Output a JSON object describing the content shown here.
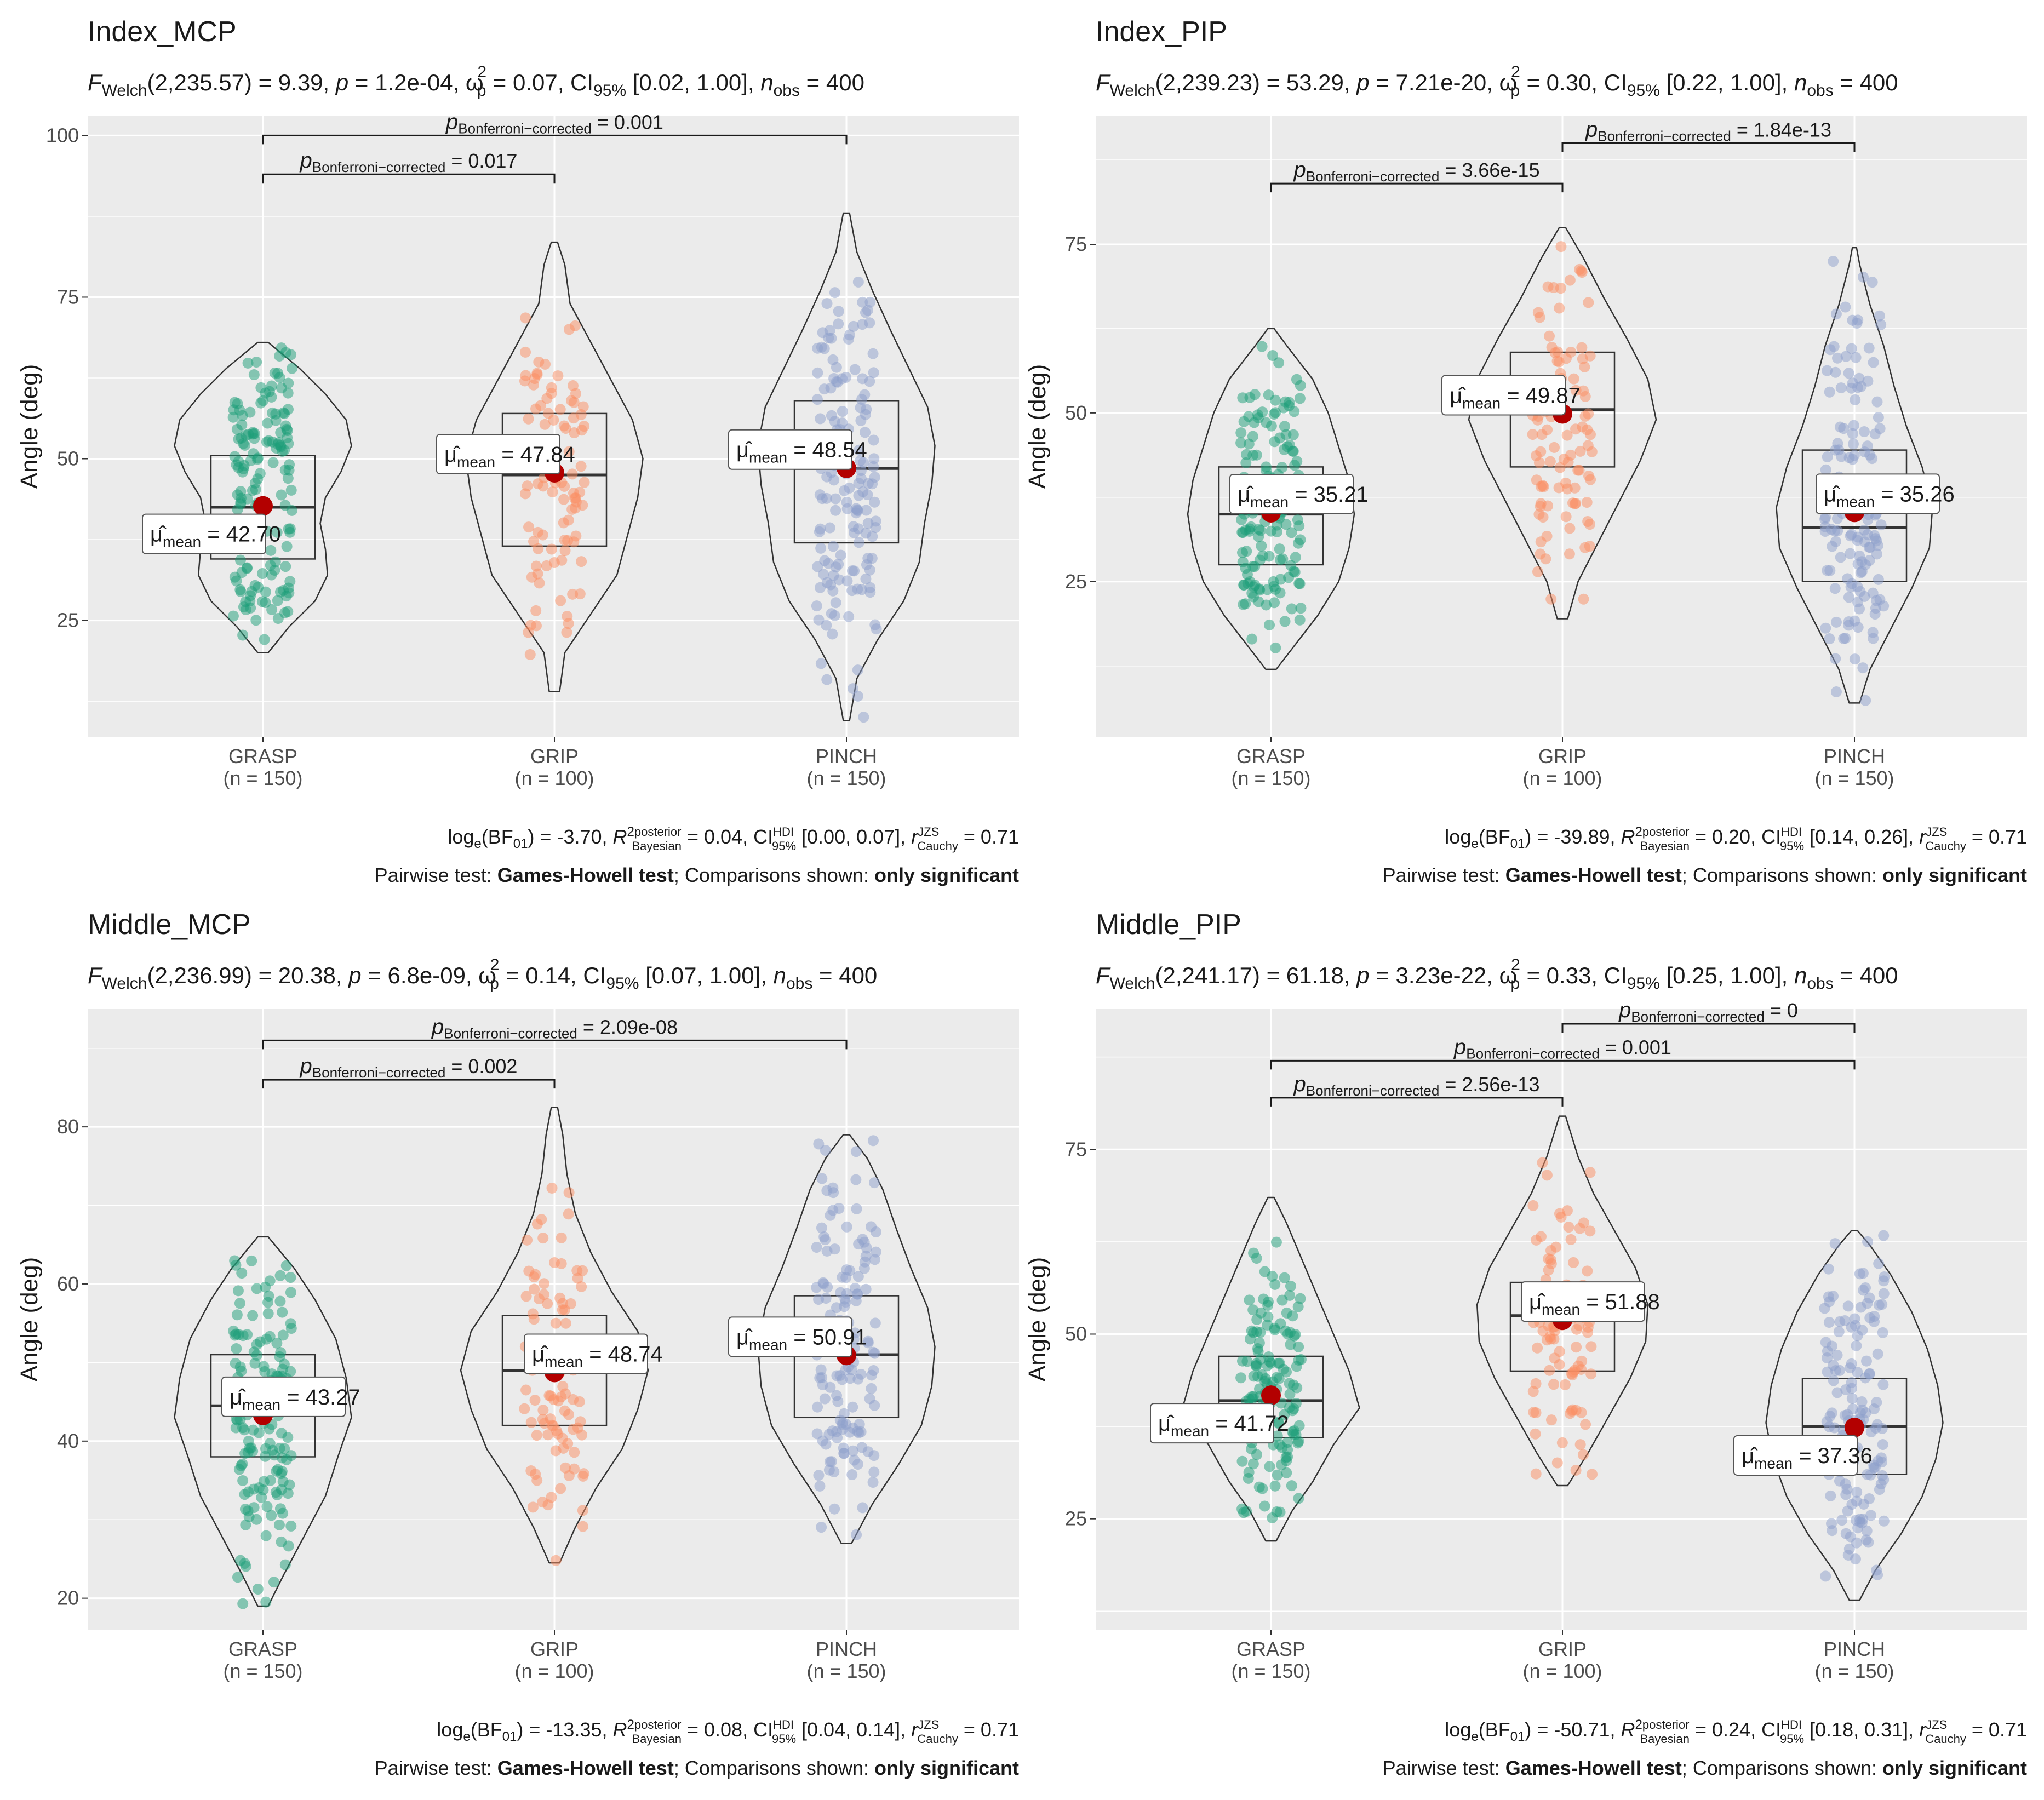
{
  "figure": {
    "pairwise_prefix": "Pairwise test: ",
    "pairwise_test": "Games-Howell test",
    "comparisons_prefix": "; Comparisons shown: ",
    "comparisons_shown": "only significant",
    "colors": {
      "GRASP": "#1b9e77",
      "GRIP": "#fc8d62",
      "PINCH": "#8da0cb",
      "mean": "#b30000",
      "panel_bg": "#ebebeb",
      "grid": "#ffffff"
    }
  },
  "chart_data": [
    {
      "type": "violin-box-scatter",
      "title": "Index_MCP",
      "subtitle": {
        "df": "2,235.57",
        "F": "9.39",
        "p": "1.2e-04",
        "omega2": "0.07",
        "ci": "[0.02, 1.00]",
        "nobs": "400"
      },
      "ylabel": "Angle (deg)",
      "ylim": [
        7,
        103
      ],
      "yticks": [
        25,
        50,
        75,
        100
      ],
      "groups": [
        {
          "name": "GRASP",
          "n_label": "(n = 150)",
          "mean": 42.7,
          "mean_label": "42.70",
          "q1": 34.5,
          "median": 42.5,
          "q3": 50.5,
          "min": 20,
          "max": 68,
          "violin": [
            [
              20,
              0.05
            ],
            [
              24,
              0.25
            ],
            [
              28,
              0.5
            ],
            [
              32,
              0.62
            ],
            [
              36,
              0.6
            ],
            [
              40,
              0.55
            ],
            [
              44,
              0.6
            ],
            [
              48,
              0.75
            ],
            [
              52,
              0.85
            ],
            [
              56,
              0.8
            ],
            [
              60,
              0.6
            ],
            [
              64,
              0.35
            ],
            [
              68,
              0.05
            ]
          ]
        },
        {
          "name": "GRIP",
          "n_label": "(n = 100)",
          "mean": 47.84,
          "mean_label": "47.84",
          "q1": 36.5,
          "median": 47.5,
          "q3": 57,
          "min": 14,
          "max": 83.5,
          "violin": [
            [
              14,
              0.05
            ],
            [
              20,
              0.1
            ],
            [
              26,
              0.35
            ],
            [
              32,
              0.6
            ],
            [
              38,
              0.7
            ],
            [
              44,
              0.8
            ],
            [
              50,
              0.85
            ],
            [
              56,
              0.75
            ],
            [
              62,
              0.55
            ],
            [
              68,
              0.35
            ],
            [
              74,
              0.15
            ],
            [
              80,
              0.1
            ],
            [
              83.5,
              0.03
            ]
          ]
        },
        {
          "name": "PINCH",
          "n_label": "(n = 150)",
          "mean": 48.54,
          "mean_label": "48.54",
          "q1": 37,
          "median": 48.5,
          "q3": 59,
          "min": 9.5,
          "max": 88,
          "violin": [
            [
              9.5,
              0.03
            ],
            [
              16,
              0.1
            ],
            [
              22,
              0.3
            ],
            [
              28,
              0.55
            ],
            [
              34,
              0.7
            ],
            [
              40,
              0.75
            ],
            [
              46,
              0.82
            ],
            [
              52,
              0.85
            ],
            [
              58,
              0.78
            ],
            [
              64,
              0.6
            ],
            [
              70,
              0.42
            ],
            [
              76,
              0.25
            ],
            [
              82,
              0.1
            ],
            [
              88,
              0.03
            ]
          ]
        }
      ],
      "comparisons": [
        {
          "from": "GRASP",
          "to": "GRIP",
          "p": "0.017",
          "y": 94
        },
        {
          "from": "GRASP",
          "to": "PINCH",
          "p": "0.001",
          "y": 100
        }
      ],
      "bayes": {
        "bf": "-3.70",
        "r2": "0.04",
        "ci": "[0.00, 0.07]",
        "r": "0.71"
      }
    },
    {
      "type": "violin-box-scatter",
      "title": "Index_PIP",
      "subtitle": {
        "df": "2,239.23",
        "F": "53.29",
        "p": "7.21e-20",
        "omega2": "0.30",
        "ci": "[0.22, 1.00]",
        "nobs": "400"
      },
      "ylabel": "Angle (deg)",
      "ylim": [
        2,
        94
      ],
      "yticks": [
        25,
        50,
        75
      ],
      "groups": [
        {
          "name": "GRASP",
          "n_label": "(n = 150)",
          "mean": 35.21,
          "mean_label": "35.21",
          "q1": 27.5,
          "median": 35,
          "q3": 42,
          "min": 12,
          "max": 62.5,
          "violin": [
            [
              12,
              0.05
            ],
            [
              16,
              0.25
            ],
            [
              20,
              0.45
            ],
            [
              25,
              0.65
            ],
            [
              30,
              0.75
            ],
            [
              35,
              0.8
            ],
            [
              40,
              0.75
            ],
            [
              45,
              0.65
            ],
            [
              50,
              0.55
            ],
            [
              55,
              0.4
            ],
            [
              60,
              0.15
            ],
            [
              62.5,
              0.03
            ]
          ]
        },
        {
          "name": "GRIP",
          "n_label": "(n = 100)",
          "mean": 49.87,
          "mean_label": "49.87",
          "q1": 42,
          "median": 50.5,
          "q3": 59,
          "min": 19.5,
          "max": 77.5,
          "violin": [
            [
              19.5,
              0.05
            ],
            [
              25,
              0.15
            ],
            [
              31,
              0.35
            ],
            [
              37,
              0.55
            ],
            [
              43,
              0.75
            ],
            [
              49,
              0.9
            ],
            [
              55,
              0.82
            ],
            [
              61,
              0.62
            ],
            [
              67,
              0.4
            ],
            [
              73,
              0.2
            ],
            [
              77.5,
              0.03
            ]
          ]
        },
        {
          "name": "PINCH",
          "n_label": "(n = 150)",
          "mean": 35.26,
          "mean_label": "35.26",
          "q1": 25,
          "median": 33,
          "q3": 44.5,
          "min": 7,
          "max": 74.5,
          "violin": [
            [
              7,
              0.05
            ],
            [
              12,
              0.15
            ],
            [
              18,
              0.35
            ],
            [
              24,
              0.55
            ],
            [
              30,
              0.72
            ],
            [
              36,
              0.75
            ],
            [
              42,
              0.65
            ],
            [
              48,
              0.5
            ],
            [
              54,
              0.38
            ],
            [
              60,
              0.28
            ],
            [
              66,
              0.15
            ],
            [
              72,
              0.05
            ],
            [
              74.5,
              0.02
            ]
          ]
        }
      ],
      "comparisons": [
        {
          "from": "GRASP",
          "to": "GRIP",
          "p": "3.66e-15",
          "y": 84
        },
        {
          "from": "GRIP",
          "to": "PINCH",
          "p": "1.84e-13",
          "y": 90
        }
      ],
      "bayes": {
        "bf": "-39.89",
        "r2": "0.20",
        "ci": "[0.14, 0.26]",
        "r": "0.71"
      }
    },
    {
      "type": "violin-box-scatter",
      "title": "Middle_MCP",
      "subtitle": {
        "df": "2,236.99",
        "F": "20.38",
        "p": "6.8e-09",
        "omega2": "0.14",
        "ci": "[0.07, 1.00]",
        "nobs": "400"
      },
      "ylabel": "Angle (deg)",
      "ylim": [
        16,
        95
      ],
      "yticks": [
        20,
        40,
        60,
        80
      ],
      "groups": [
        {
          "name": "GRASP",
          "n_label": "(n = 150)",
          "mean": 43.27,
          "mean_label": "43.27",
          "q1": 38,
          "median": 44.5,
          "q3": 51,
          "min": 19,
          "max": 66,
          "violin": [
            [
              19,
              0.05
            ],
            [
              23,
              0.2
            ],
            [
              28,
              0.4
            ],
            [
              33,
              0.6
            ],
            [
              38,
              0.72
            ],
            [
              43,
              0.85
            ],
            [
              48,
              0.8
            ],
            [
              53,
              0.7
            ],
            [
              58,
              0.5
            ],
            [
              62,
              0.3
            ],
            [
              66,
              0.05
            ]
          ]
        },
        {
          "name": "GRIP",
          "n_label": "(n = 100)",
          "mean": 48.74,
          "mean_label": "48.74",
          "q1": 42,
          "median": 49,
          "q3": 56,
          "min": 24.5,
          "max": 82.5,
          "violin": [
            [
              24.5,
              0.05
            ],
            [
              29,
              0.2
            ],
            [
              34,
              0.4
            ],
            [
              39,
              0.65
            ],
            [
              44,
              0.8
            ],
            [
              49,
              0.9
            ],
            [
              54,
              0.8
            ],
            [
              59,
              0.55
            ],
            [
              64,
              0.35
            ],
            [
              69,
              0.2
            ],
            [
              74,
              0.12
            ],
            [
              79,
              0.08
            ],
            [
              82.5,
              0.03
            ]
          ]
        },
        {
          "name": "PINCH",
          "n_label": "(n = 150)",
          "mean": 50.91,
          "mean_label": "50.91",
          "q1": 43,
          "median": 51,
          "q3": 58.5,
          "min": 27,
          "max": 79,
          "violin": [
            [
              27,
              0.05
            ],
            [
              32,
              0.25
            ],
            [
              37,
              0.5
            ],
            [
              42,
              0.72
            ],
            [
              47,
              0.82
            ],
            [
              52,
              0.85
            ],
            [
              57,
              0.78
            ],
            [
              62,
              0.62
            ],
            [
              67,
              0.48
            ],
            [
              72,
              0.35
            ],
            [
              76,
              0.2
            ],
            [
              79,
              0.03
            ]
          ]
        }
      ],
      "comparisons": [
        {
          "from": "GRASP",
          "to": "GRIP",
          "p": "0.002",
          "y": 86
        },
        {
          "from": "GRASP",
          "to": "PINCH",
          "p": "2.09e-08",
          "y": 91
        }
      ],
      "bayes": {
        "bf": "-13.35",
        "r2": "0.08",
        "ci": "[0.04, 0.14]",
        "r": "0.71"
      }
    },
    {
      "type": "violin-box-scatter",
      "title": "Middle_PIP",
      "subtitle": {
        "df": "2,241.17",
        "F": "61.18",
        "p": "3.23e-22",
        "omega2": "0.33",
        "ci": "[0.25, 1.00]",
        "nobs": "400"
      },
      "ylabel": "Angle (deg)",
      "ylim": [
        10,
        94
      ],
      "yticks": [
        25,
        50,
        75
      ],
      "groups": [
        {
          "name": "GRASP",
          "n_label": "(n = 150)",
          "mean": 41.72,
          "mean_label": "41.72",
          "q1": 36,
          "median": 41,
          "q3": 47,
          "min": 22,
          "max": 68.5,
          "violin": [
            [
              22,
              0.05
            ],
            [
              26,
              0.2
            ],
            [
              30,
              0.4
            ],
            [
              35,
              0.6
            ],
            [
              40,
              0.85
            ],
            [
              45,
              0.75
            ],
            [
              50,
              0.6
            ],
            [
              55,
              0.45
            ],
            [
              60,
              0.3
            ],
            [
              65,
              0.15
            ],
            [
              68.5,
              0.03
            ]
          ]
        },
        {
          "name": "GRIP",
          "n_label": "(n = 100)",
          "mean": 51.88,
          "mean_label": "51.88",
          "q1": 45,
          "median": 52.5,
          "q3": 57,
          "min": 29.5,
          "max": 79.5,
          "violin": [
            [
              29.5,
              0.05
            ],
            [
              34,
              0.25
            ],
            [
              39,
              0.45
            ],
            [
              44,
              0.65
            ],
            [
              49,
              0.8
            ],
            [
              54,
              0.82
            ],
            [
              59,
              0.7
            ],
            [
              64,
              0.5
            ],
            [
              69,
              0.3
            ],
            [
              74,
              0.15
            ],
            [
              79.5,
              0.03
            ]
          ]
        },
        {
          "name": "PINCH",
          "n_label": "(n = 150)",
          "mean": 37.36,
          "mean_label": "37.36",
          "q1": 31,
          "median": 37.5,
          "q3": 44,
          "min": 14,
          "max": 64,
          "violin": [
            [
              14,
              0.05
            ],
            [
              18,
              0.2
            ],
            [
              23,
              0.45
            ],
            [
              28,
              0.65
            ],
            [
              33,
              0.78
            ],
            [
              38,
              0.85
            ],
            [
              43,
              0.8
            ],
            [
              48,
              0.7
            ],
            [
              53,
              0.55
            ],
            [
              58,
              0.35
            ],
            [
              62,
              0.15
            ],
            [
              64,
              0.03
            ]
          ]
        }
      ],
      "comparisons": [
        {
          "from": "GRASP",
          "to": "GRIP",
          "p": "2.56e-13",
          "y": 82
        },
        {
          "from": "GRASP",
          "to": "PINCH",
          "p": "0.001",
          "y": 87
        },
        {
          "from": "GRIP",
          "to": "PINCH",
          "p": "0",
          "y": 92
        }
      ],
      "bayes": {
        "bf": "-50.71",
        "r2": "0.24",
        "ci": "[0.18, 0.31]",
        "r": "0.71"
      }
    }
  ]
}
